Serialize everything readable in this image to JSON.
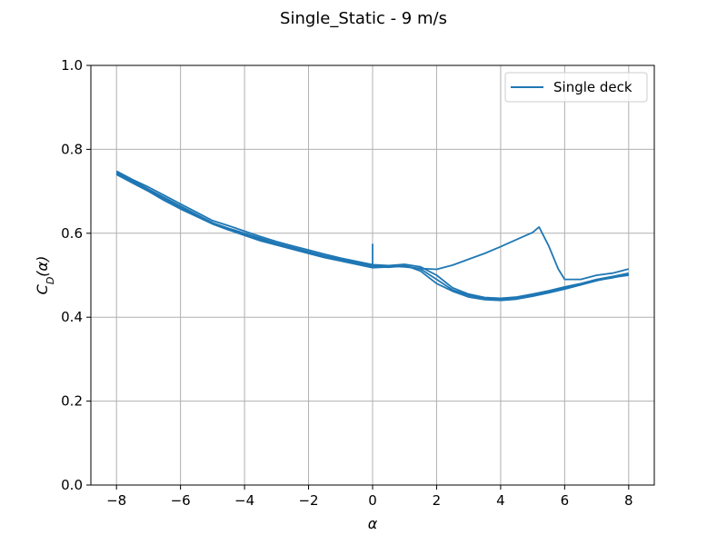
{
  "chart_data": {
    "type": "line",
    "title": "Single_Static - 9 m/s",
    "xlabel": "α",
    "ylabel": {
      "base": "C",
      "sub": "D",
      "arg": "(α)"
    },
    "xlim": [
      -8.8,
      8.8
    ],
    "ylim": [
      0.0,
      1.0
    ],
    "xticks": [
      -8,
      -6,
      -4,
      -2,
      0,
      2,
      4,
      6,
      8
    ],
    "xtick_labels": [
      "−8",
      "−6",
      "−4",
      "−2",
      "0",
      "2",
      "4",
      "6",
      "8"
    ],
    "yticks": [
      0.0,
      0.2,
      0.4,
      0.6,
      0.8,
      1.0
    ],
    "ytick_labels": [
      "0.0",
      "0.2",
      "0.4",
      "0.6",
      "0.8",
      "1.0"
    ],
    "grid": true,
    "legend_position": "top-right",
    "color": "#1f77b4",
    "series": [
      {
        "name": "Single deck",
        "traces": [
          {
            "x": [
              -8,
              -7.5,
              -7,
              -6.5,
              -6,
              -5.5,
              -5,
              -4.5,
              -4,
              -3.5,
              -3,
              -2.5,
              -2,
              -1.5,
              -1,
              -0.5,
              0,
              0.5,
              1,
              1.5,
              2,
              2.5,
              3,
              3.5,
              4,
              4.5,
              5,
              5.2,
              5.5,
              5.8,
              6,
              6.5,
              7,
              7.5,
              8
            ],
            "y": [
              0.745,
              0.725,
              0.705,
              0.685,
              0.665,
              0.645,
              0.625,
              0.612,
              0.6,
              0.588,
              0.576,
              0.566,
              0.556,
              0.546,
              0.538,
              0.53,
              0.522,
              0.522,
              0.52,
              0.516,
              0.514,
              0.524,
              0.538,
              0.552,
              0.568,
              0.585,
              0.602,
              0.615,
              0.57,
              0.515,
              0.49,
              0.49,
              0.5,
              0.505,
              0.515
            ]
          },
          {
            "x": [
              -8,
              -7.5,
              -7,
              -6.5,
              -6,
              -5.5,
              -5,
              -4.5,
              -4,
              -3.5,
              -3,
              -2.5,
              -2,
              -1.5,
              -1,
              -0.5,
              0,
              0.5,
              1,
              1.5,
              2,
              2.5,
              3,
              3.5,
              4,
              4.5,
              5,
              5.5,
              6,
              6.5,
              7,
              7.5,
              8
            ],
            "y": [
              0.74,
              0.72,
              0.7,
              0.678,
              0.658,
              0.64,
              0.622,
              0.608,
              0.595,
              0.582,
              0.572,
              0.562,
              0.552,
              0.542,
              0.534,
              0.526,
              0.518,
              0.52,
              0.524,
              0.51,
              0.48,
              0.462,
              0.448,
              0.442,
              0.44,
              0.443,
              0.45,
              0.458,
              0.467,
              0.477,
              0.487,
              0.495,
              0.5
            ]
          },
          {
            "x": [
              -8,
              -7.5,
              -7,
              -6.5,
              -6,
              -5.5,
              -5,
              -4.5,
              -4,
              -3.5,
              -3,
              -2.5,
              -2,
              -1.5,
              -1,
              -0.5,
              0,
              0.5,
              1,
              1.5,
              2,
              2.5,
              3,
              3.5,
              4,
              4.5,
              5,
              5.5,
              6,
              6.5,
              7,
              7.5,
              8
            ],
            "y": [
              0.748,
              0.728,
              0.71,
              0.69,
              0.67,
              0.65,
              0.63,
              0.618,
              0.605,
              0.592,
              0.58,
              0.57,
              0.56,
              0.55,
              0.541,
              0.533,
              0.525,
              0.523,
              0.526,
              0.52,
              0.5,
              0.47,
              0.455,
              0.447,
              0.445,
              0.448,
              0.455,
              0.463,
              0.472,
              0.48,
              0.49,
              0.497,
              0.505
            ]
          },
          {
            "x": [
              -8,
              -7.5,
              -7,
              -6.5,
              -6,
              -5.5,
              -5,
              -4.5,
              -4,
              -3.5,
              -3,
              -2.5,
              -2,
              -1.5,
              -1,
              -0.5,
              0,
              0.5,
              1,
              1.5,
              2,
              2.5,
              3,
              3.5,
              4,
              4.5,
              5,
              5.5,
              6,
              6.5,
              7,
              7.5,
              8
            ],
            "y": [
              0.742,
              0.722,
              0.702,
              0.682,
              0.662,
              0.643,
              0.625,
              0.61,
              0.598,
              0.585,
              0.574,
              0.564,
              0.554,
              0.544,
              0.536,
              0.528,
              0.52,
              0.519,
              0.522,
              0.515,
              0.49,
              0.465,
              0.452,
              0.445,
              0.442,
              0.446,
              0.452,
              0.46,
              0.47,
              0.478,
              0.488,
              0.494,
              0.502
            ]
          },
          {
            "x": [
              0,
              0
            ],
            "y": [
              0.52,
              0.575
            ]
          }
        ]
      }
    ]
  }
}
